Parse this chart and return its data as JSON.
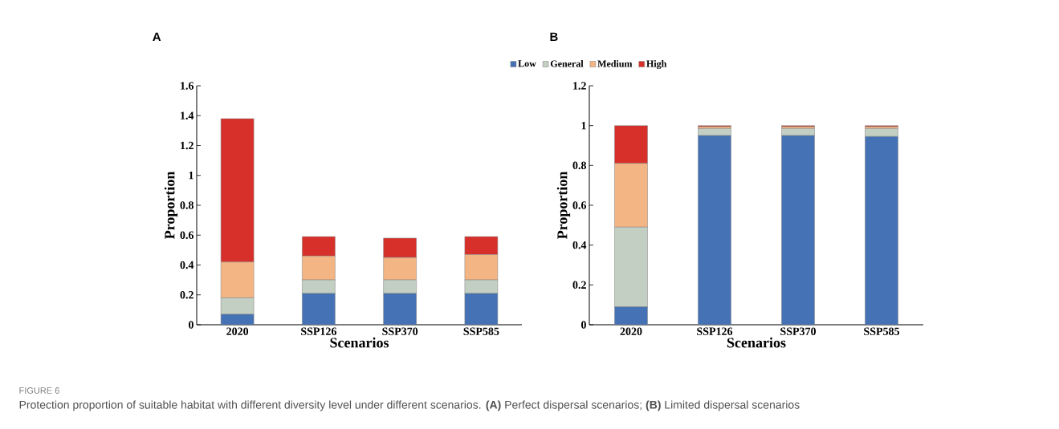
{
  "chart_data": [
    {
      "type": "bar",
      "stacked": true,
      "title": "A",
      "xlabel": "Scenarios",
      "ylabel": "Proportion",
      "categories": [
        "2020",
        "SSP126",
        "SSP370",
        "SSP585"
      ],
      "series": [
        {
          "color": "#4472b4",
          "values": [
            0.07,
            0.21,
            0.21,
            0.21
          ]
        },
        {
          "color": "#c3cfc3",
          "values": [
            0.11,
            0.09,
            0.09,
            0.09
          ]
        },
        {
          "color": "#f4b584",
          "values": [
            0.24,
            0.16,
            0.15,
            0.17
          ]
        },
        {
          "color": "#d7302a",
          "values": [
            0.96,
            0.13,
            0.13,
            0.12
          ]
        }
      ],
      "ylim": [
        0,
        1.6
      ],
      "yticks": [
        0,
        0.2,
        0.4,
        0.6,
        0.8,
        1,
        1.2,
        1.4,
        1.6
      ],
      "annotations": [
        "FIGURE 6",
        "Protection proportion of suitable habitat with different diversity level under different scenarios. **(A)** Perfect dispersal scenarios; **(B)** Limited dispersal scenarios"
      ]
    },
    {
      "type": "bar",
      "stacked": true,
      "title": "B",
      "xlabel": "Scenarios",
      "ylabel": "Proportion",
      "categories": [
        "2020",
        "SSP126",
        "SSP370",
        "SSP585"
      ],
      "series": [
        {
          "name": "Low",
          "color": "#4472b4",
          "values": [
            0.09,
            0.95,
            0.95,
            0.945
          ]
        },
        {
          "name": "General",
          "color": "#c3cfc3",
          "values": [
            0.4,
            0.035,
            0.035,
            0.04
          ]
        },
        {
          "name": "Medium",
          "color": "#f4b584",
          "values": [
            0.32,
            0.01,
            0.01,
            0.01
          ]
        },
        {
          "name": "High",
          "color": "#d7302a",
          "values": [
            0.19,
            0.005,
            0.005,
            0.005
          ]
        }
      ],
      "ylim": [
        0,
        1.2
      ],
      "yticks": [
        0,
        0.2,
        0.4,
        0.6,
        0.8,
        1,
        1.2
      ],
      "legend": "top left"
    }
  ]
}
